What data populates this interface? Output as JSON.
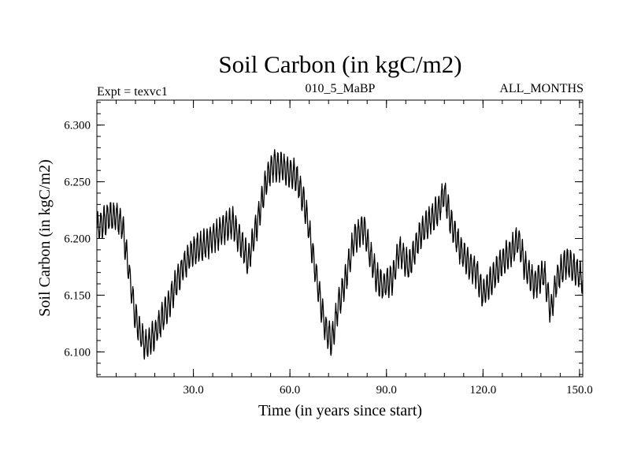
{
  "chart_data": {
    "type": "line",
    "title": "Soil Carbon (in kgC/m2)",
    "subtitle_left": "Expt = texvc1",
    "subtitle_center": "010_5_MaBP",
    "subtitle_right": "ALL_MONTHS",
    "xlabel": "Time (in years since start)",
    "ylabel": "Soil Carbon (in kgC/m2)",
    "xlim": [
      0,
      151
    ],
    "ylim": [
      6.078,
      6.322
    ],
    "x_ticks": [
      30,
      60,
      90,
      120,
      150
    ],
    "x_tick_labels": [
      "30.0",
      "60.0",
      "90.0",
      "120.0",
      "150.0"
    ],
    "y_ticks": [
      6.1,
      6.15,
      6.2,
      6.25,
      6.3
    ],
    "y_tick_labels": [
      "6.100",
      "6.150",
      "6.200",
      "6.250",
      "6.300"
    ],
    "x_minor_step": 6,
    "y_minor_step": 0.01,
    "line_color": "#000000",
    "seasonal_amplitude": 0.012,
    "series": [
      {
        "name": "Soil Carbon",
        "trend_x": [
          0,
          2,
          4,
          6,
          8,
          10,
          12,
          15,
          18,
          22,
          26,
          30,
          34,
          38,
          42,
          45,
          47,
          50,
          53,
          55,
          58,
          62,
          65,
          68,
          71,
          73,
          75,
          77,
          80,
          83,
          85,
          87,
          89,
          92,
          94,
          97,
          100,
          103,
          106,
          108,
          110,
          113,
          116,
          118,
          120,
          123,
          126,
          129,
          131,
          133,
          136,
          139,
          141,
          143,
          146,
          148,
          151
        ],
        "trend_y": [
          6.208,
          6.214,
          6.22,
          6.22,
          6.21,
          6.17,
          6.13,
          6.105,
          6.115,
          6.14,
          6.17,
          6.19,
          6.195,
          6.205,
          6.215,
          6.195,
          6.18,
          6.215,
          6.255,
          6.265,
          6.262,
          6.255,
          6.225,
          6.17,
          6.12,
          6.11,
          6.14,
          6.16,
          6.2,
          6.21,
          6.185,
          6.165,
          6.158,
          6.165,
          6.19,
          6.175,
          6.2,
          6.215,
          6.225,
          6.24,
          6.215,
          6.19,
          6.175,
          6.17,
          6.15,
          6.165,
          6.18,
          6.19,
          6.2,
          6.175,
          6.16,
          6.17,
          6.135,
          6.165,
          6.18,
          6.175,
          6.163
        ]
      }
    ]
  }
}
